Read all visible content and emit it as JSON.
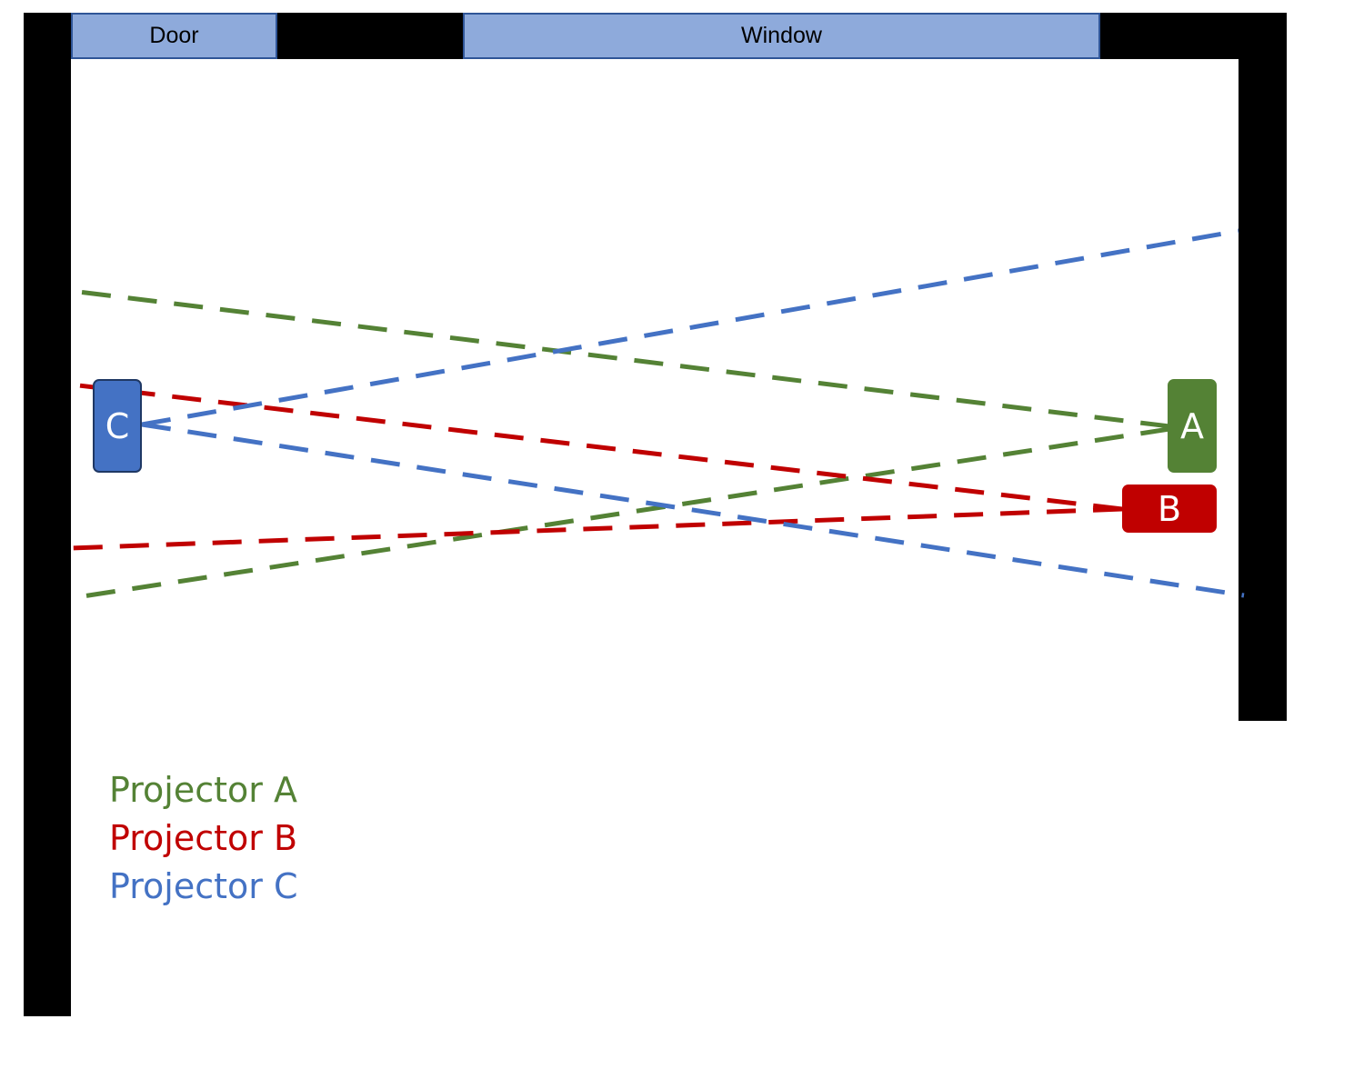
{
  "room": {
    "door_label": "Door",
    "window_label": "Window"
  },
  "projectors": {
    "a": {
      "label": "A",
      "color": "#548235"
    },
    "b": {
      "label": "B",
      "color": "#c00000"
    },
    "c": {
      "label": "C",
      "color": "#4472c4"
    }
  },
  "legend": [
    {
      "label": "Projector A",
      "color": "#548235"
    },
    {
      "label": "Projector B",
      "color": "#c00000"
    },
    {
      "label": "Projector C",
      "color": "#4472c4"
    }
  ],
  "wall_color": "#000000",
  "opening_color": "#8eaadb"
}
